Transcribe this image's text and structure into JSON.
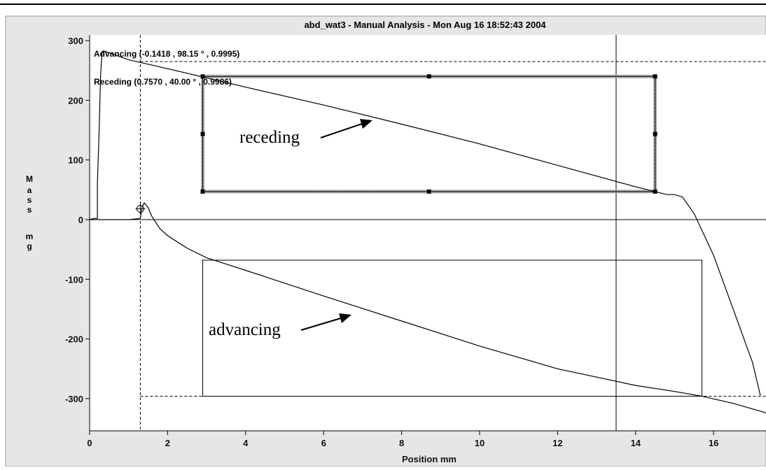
{
  "window": {
    "title": "abd_wat3  -  Manual Analysis  -  Mon Aug 16 18:52:43 2004"
  },
  "chart_data": {
    "type": "line",
    "title": "abd_wat3  -  Manual Analysis  -  Mon Aug 16 18:52:43 2004",
    "xlabel": "Position  mm",
    "ylabel": "Mass mg",
    "ylabel_chars": [
      "M",
      "a",
      "s",
      "s",
      "",
      "m",
      "g"
    ],
    "xlim": [
      0,
      17.4
    ],
    "ylim": [
      -355,
      310
    ],
    "xticks": [
      0,
      2,
      4,
      6,
      8,
      10,
      12,
      14,
      16
    ],
    "yticks": [
      300,
      200,
      100,
      0,
      -100,
      -200,
      -300
    ],
    "grid": false,
    "fit_labels": {
      "advancing": "Advancing  (-0.1418 , 98.15 ° , 0.9995)",
      "receding": "Receding  (0.7570 , 40.00 ° , 0.9986)"
    },
    "annotations": {
      "receding": "receding",
      "advancing": "advancing"
    },
    "series": [
      {
        "name": "receding",
        "x": [
          0.0,
          0.1,
          0.2,
          0.2,
          0.25,
          0.28,
          0.32,
          0.4,
          1.0,
          2.0,
          4.0,
          6.0,
          8.0,
          10.0,
          12.0,
          14.0,
          14.5,
          14.8,
          15.0,
          15.2,
          15.5,
          16.0,
          16.5,
          17.0,
          17.2
        ],
        "y": [
          0,
          2,
          2,
          60,
          160,
          240,
          282,
          282,
          268,
          253,
          222,
          192,
          160,
          127,
          91,
          55,
          47,
          42,
          42,
          38,
          10,
          -60,
          -150,
          -240,
          -295
        ]
      },
      {
        "name": "advancing",
        "x": [
          0.0,
          0.5,
          1.0,
          1.3,
          1.35,
          1.4,
          1.5,
          1.6,
          1.8,
          2.0,
          2.5,
          3.0,
          4.0,
          6.0,
          8.0,
          10.0,
          12.0,
          14.0,
          15.0,
          15.7,
          16.5,
          17.4
        ],
        "y": [
          0,
          0,
          0,
          2,
          22,
          28,
          20,
          5,
          -15,
          -27,
          -48,
          -64,
          -85,
          -128,
          -170,
          -212,
          -250,
          -278,
          -288,
          -296,
          -308,
          -325
        ]
      }
    ],
    "guides": {
      "dashed_vertical_x": 1.3,
      "solid_vertical_x": 13.5,
      "dashed_horizontal_y": -296,
      "dashed_right_box": {
        "x": [
          1.3,
          17.4
        ],
        "y": [
          -296,
          265
        ]
      },
      "receding_box": {
        "x": [
          2.9,
          14.5
        ],
        "y": [
          47,
          240
        ]
      },
      "advancing_box": {
        "x": [
          2.9,
          15.7
        ],
        "y": [
          -296,
          -68
        ]
      },
      "marker": {
        "x": 1.3,
        "y": 18
      }
    }
  }
}
